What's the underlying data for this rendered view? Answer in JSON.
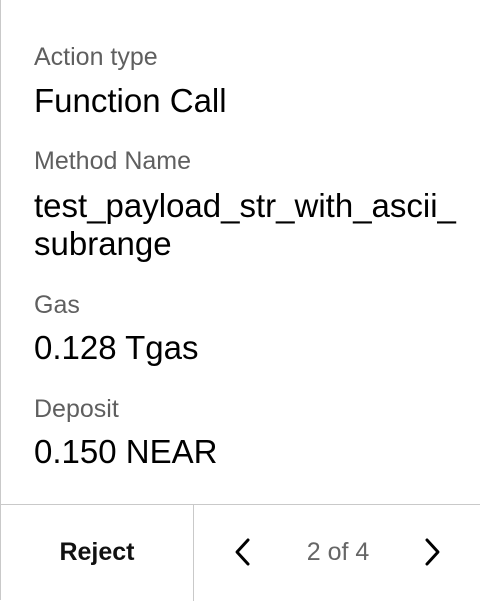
{
  "details": {
    "action_type_label": "Action type",
    "action_type_value": "Function Call",
    "method_name_label": "Method Name",
    "method_name_value": "test_payload_str_with_ascii_subrange",
    "gas_label": "Gas",
    "gas_value": "0.128 Tgas",
    "deposit_label": "Deposit",
    "deposit_value": "0.150 NEAR"
  },
  "footer": {
    "reject_label": "Reject",
    "page_indicator": "2 of 4",
    "prev_icon": "chevron-left-icon",
    "next_icon": "chevron-right-icon"
  },
  "colors": {
    "label": "#5f5f5f",
    "value": "#000000",
    "border": "#c9c9c9",
    "pagination": "#666666"
  }
}
